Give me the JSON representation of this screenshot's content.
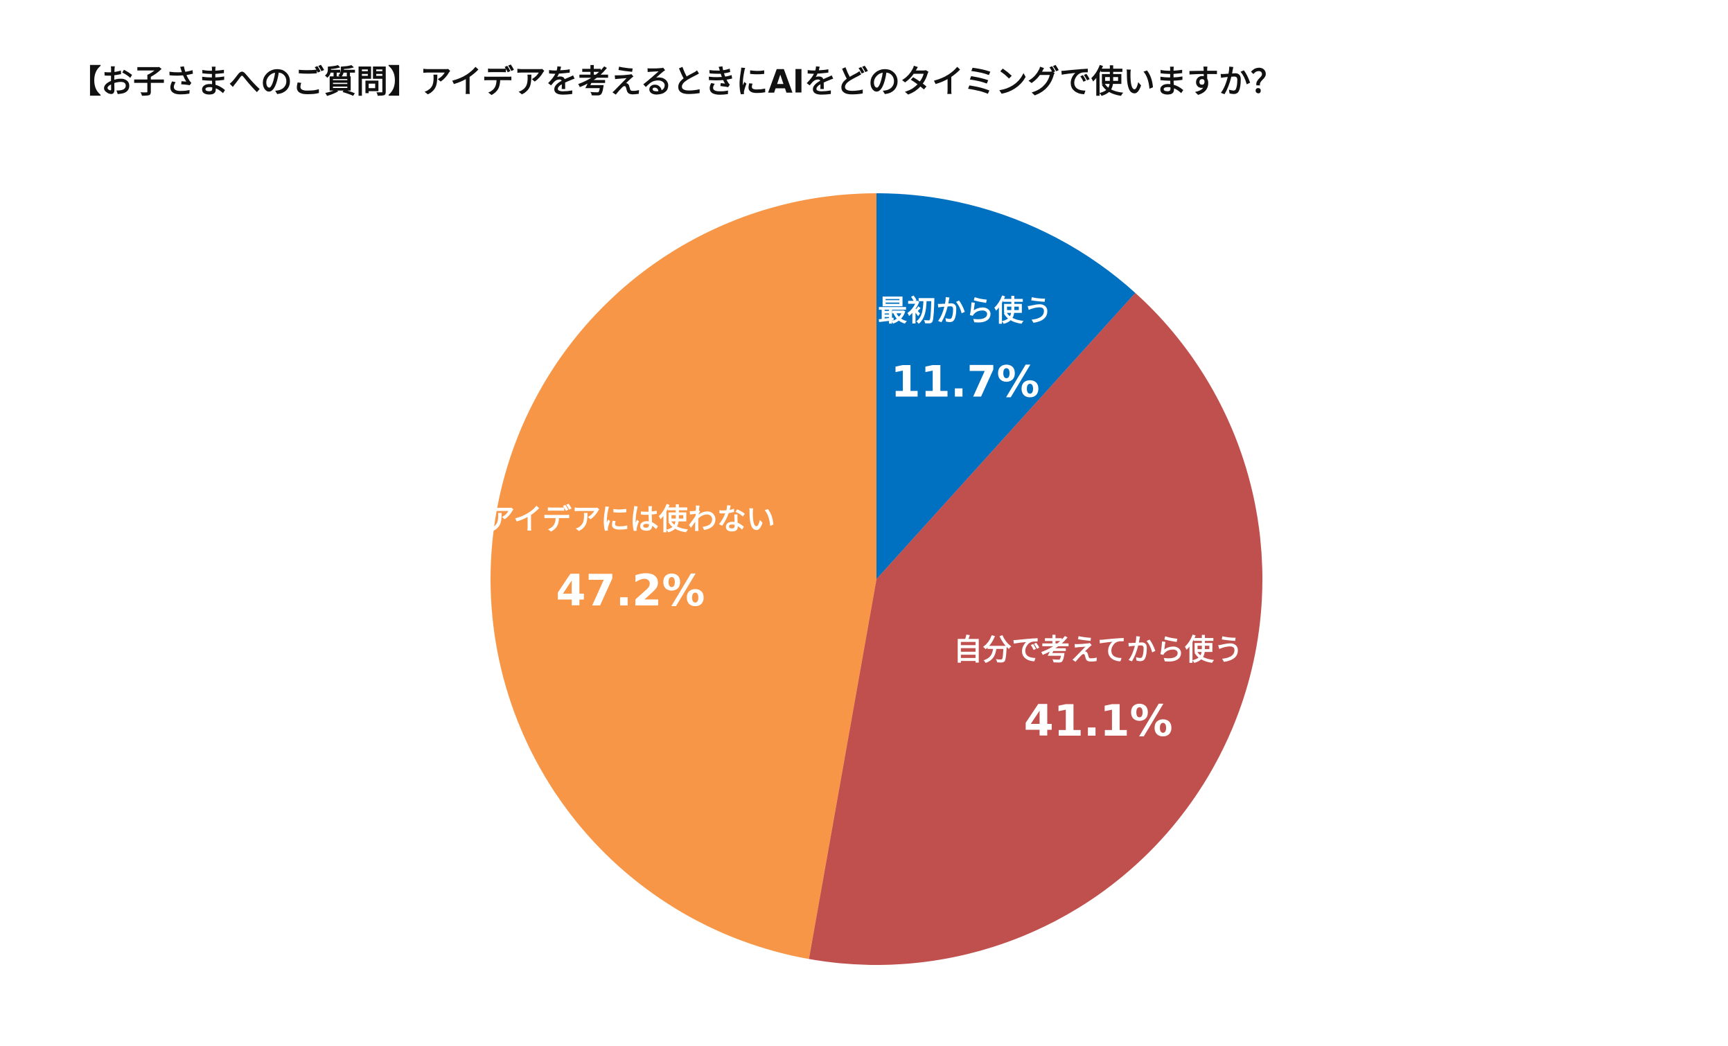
{
  "chart_data": {
    "type": "pie",
    "title": "【お子さまへのご質問】アイデアを考えるときにAIをどのタイミングで使いますか？",
    "categories": [
      "最初から使う",
      "自分で考えてから使う",
      "アイデアには使わない"
    ],
    "values": [
      11.7,
      41.1,
      47.2
    ],
    "value_labels": [
      "11.7%",
      "41.1%",
      "47.2%"
    ],
    "colors": [
      "#0070c0",
      "#c0504d",
      "#f79646"
    ]
  }
}
